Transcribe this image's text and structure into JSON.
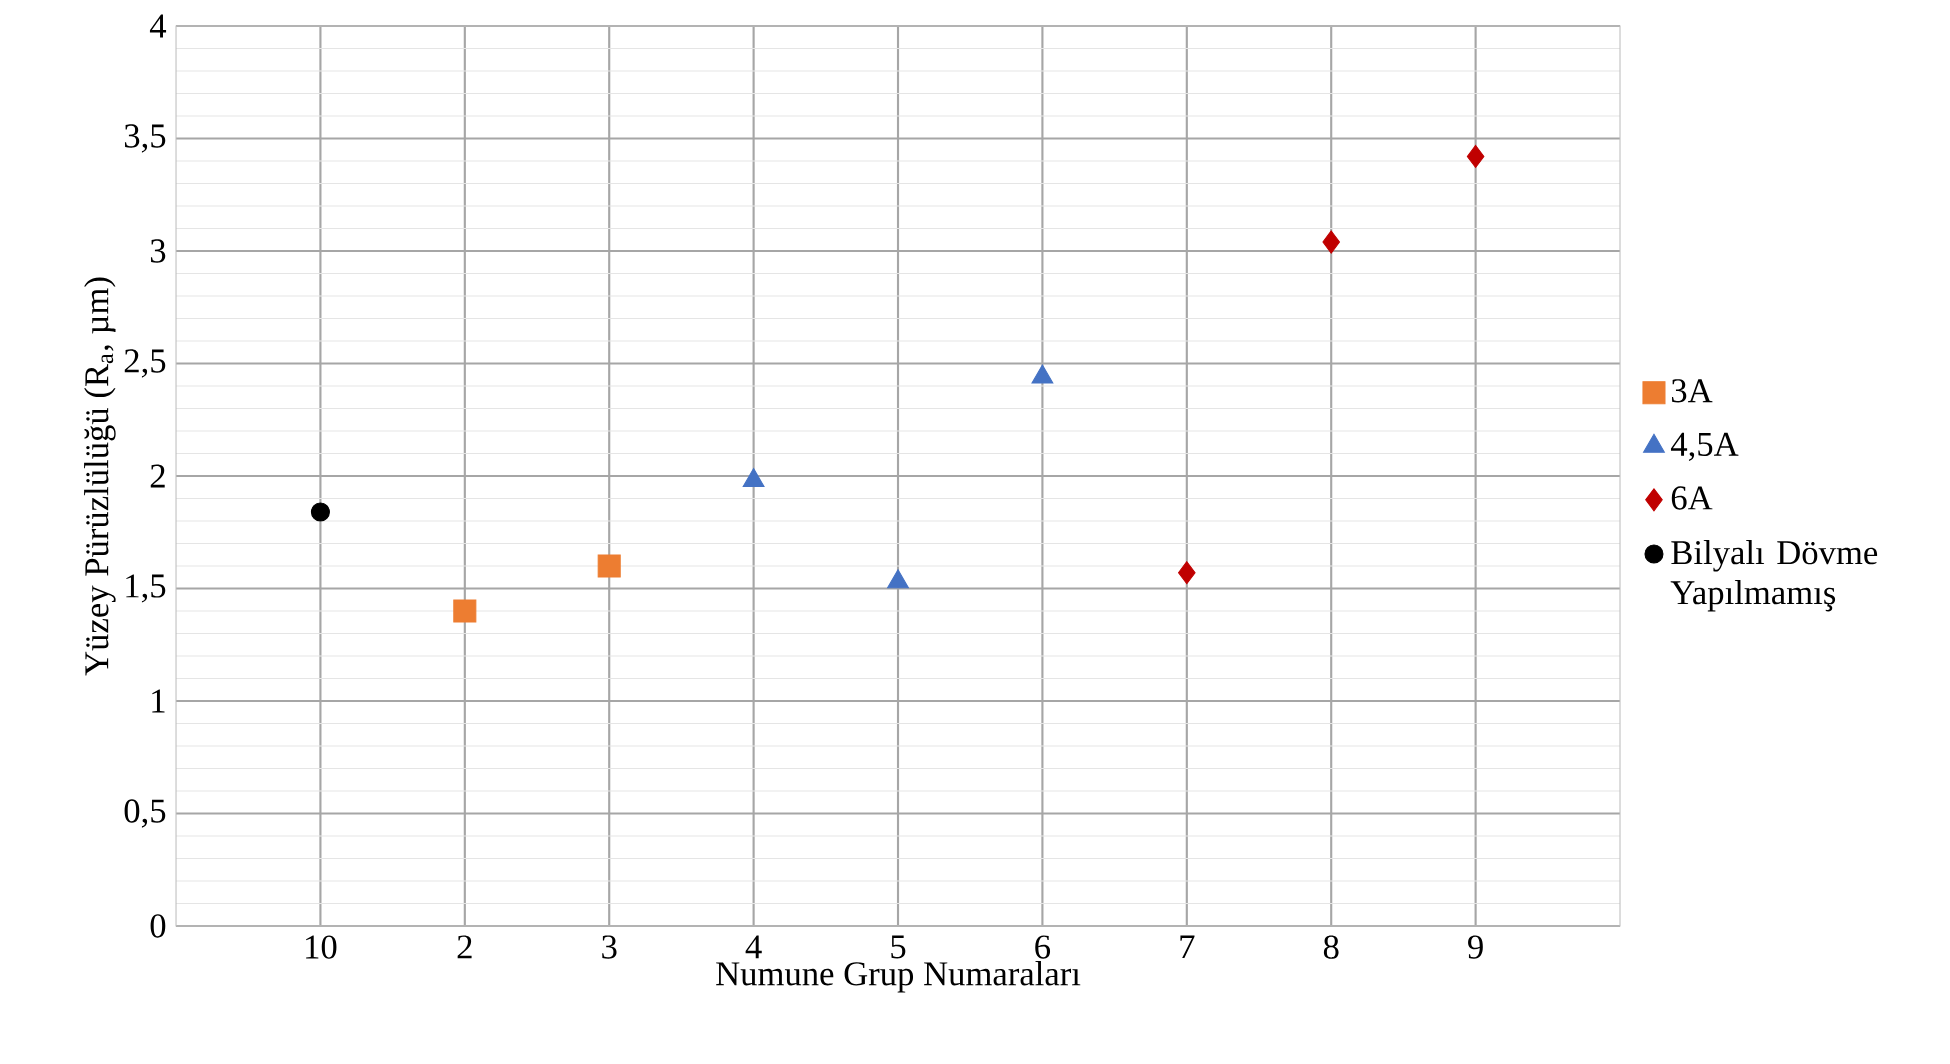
{
  "chart_data": {
    "type": "scatter",
    "xlabel": "Numune Grup Numaraları",
    "ylabel": "Yüzey Pürüzlülüğü (R$_{a}$, µm)",
    "categories": [
      "10",
      "2",
      "3",
      "4",
      "5",
      "6",
      "7",
      "8",
      "9"
    ],
    "ylim": [
      0,
      4
    ],
    "yticks": [
      {
        "value": 0,
        "label": "0"
      },
      {
        "value": 0.5,
        "label": "0,5"
      },
      {
        "value": 1,
        "label": "1"
      },
      {
        "value": 1.5,
        "label": "1,5"
      },
      {
        "value": 2,
        "label": "2"
      },
      {
        "value": 2.5,
        "label": "2,5"
      },
      {
        "value": 3,
        "label": "3"
      },
      {
        "value": 3.5,
        "label": "3,5"
      },
      {
        "value": 4,
        "label": "4"
      }
    ],
    "grid": true,
    "legend": "right",
    "series": [
      {
        "name": "3A",
        "color": "#ed7d31",
        "marker": "square",
        "x": [
          "2",
          "3"
        ],
        "values": [
          1.4,
          1.6
        ]
      },
      {
        "name": "4,5A",
        "color": "#4472c4",
        "marker": "triangle",
        "x": [
          "4",
          "5",
          "6"
        ],
        "values": [
          1.98,
          1.53,
          2.44
        ]
      },
      {
        "name": "6A",
        "color": "#c00000",
        "marker": "diamond",
        "x": [
          "7",
          "8",
          "9"
        ],
        "values": [
          1.57,
          3.04,
          3.42
        ]
      },
      {
        "name": "Bilyalı Dövme Yapılmamış",
        "color": "#000000",
        "marker": "circle",
        "x": [
          "10"
        ],
        "values": [
          1.84
        ]
      }
    ]
  }
}
